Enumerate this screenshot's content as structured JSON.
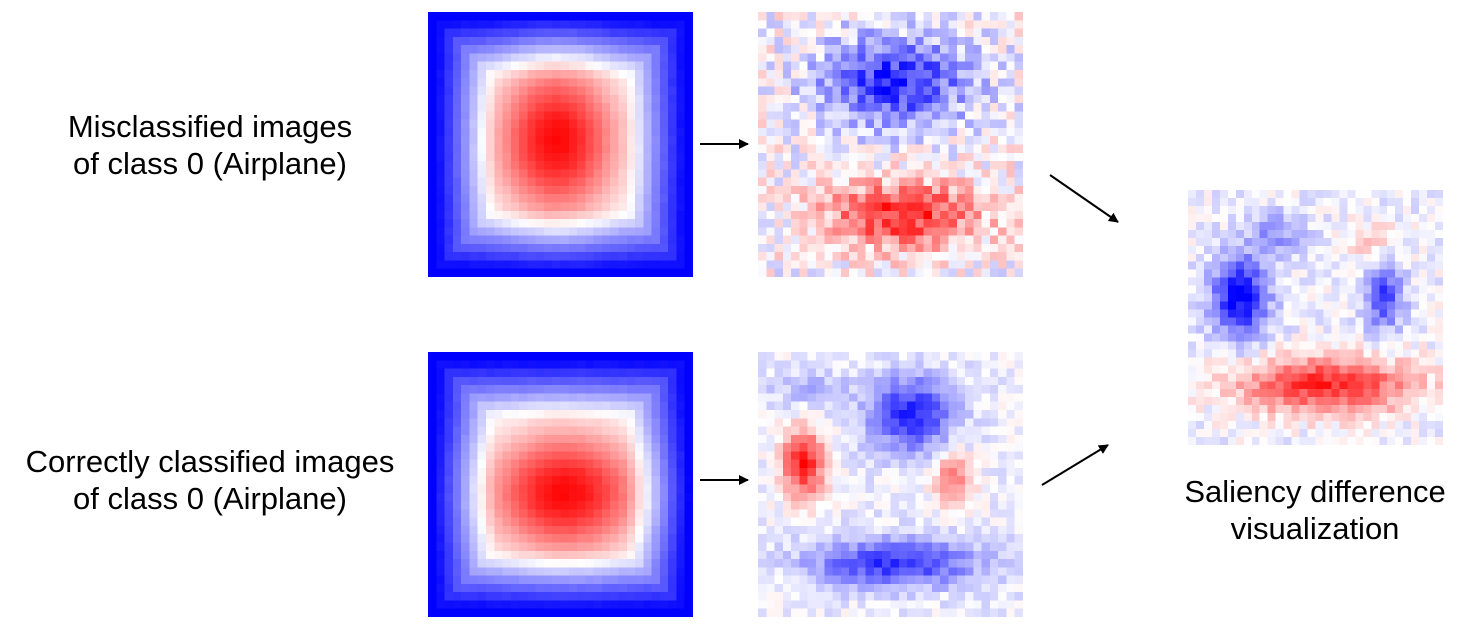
{
  "rows": [
    {
      "label_line1": "Misclassified images",
      "label_line2": "of class 0 (Airplane)"
    },
    {
      "label_line1": "Correctly classified images",
      "label_line2": "of class 0 (Airplane)"
    }
  ],
  "result": {
    "caption_line1": "Saliency difference",
    "caption_line2": "visualization"
  },
  "colors": {
    "positive": "#ff0000",
    "negative": "#0000ff",
    "neutral": "#ffffff",
    "arrow": "#000000"
  }
}
